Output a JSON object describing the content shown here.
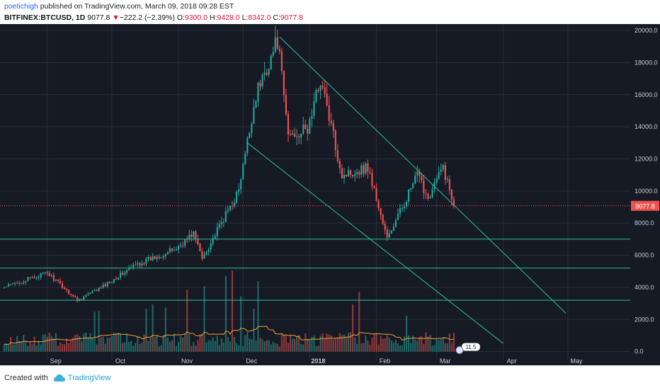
{
  "header": {
    "author": "poetichigh",
    "published_text": " published on TradingView.com, March 09, 2018 09:28 EST",
    "symbol": "BITFINEX:BTCUSD, 1D",
    "last": "9077.8",
    "change_arrow": "▼",
    "change": "−222.2 (−2.39%)",
    "open_label": "O:",
    "open": "9300.0",
    "high_label": "H:",
    "high": "9428.0",
    "low_label": "L:",
    "low": "8342.0",
    "close_label": "C:",
    "close": "9077.8"
  },
  "footer": {
    "created_with": "Created with",
    "brand": "TradingView"
  },
  "colors": {
    "background": "#161a25",
    "grid": "#2a2e39",
    "up": "#26a69a",
    "down": "#ef5350",
    "line": "#2bbf9d",
    "ma": "#f0a030",
    "price_tag": "#ef5350"
  },
  "chart_data": {
    "type": "candlestick",
    "x_axis_labels": [
      "Sep",
      "Oct",
      "Nov",
      "Dec",
      "2018",
      "Feb",
      "Mar",
      "Apr",
      "May"
    ],
    "y_axis_labels": [
      "20000.0",
      "18000.0",
      "16000.0",
      "14000.0",
      "12000.0",
      "10000.0",
      "8000.0",
      "6000.0",
      "4000.0",
      "2000.0",
      "0.0"
    ],
    "y_range": [
      -500,
      20400
    ],
    "last_price_label": "9077.8",
    "last_price": 9077.8,
    "badge_text": "11.5",
    "support_levels": [
      7000,
      5200,
      3200
    ],
    "channel_upper": [
      {
        "date": "2017-12-18",
        "price": 19600
      },
      {
        "date": "2018-04-30",
        "price": 2400
      }
    ],
    "channel_lower": [
      {
        "date": "2017-12-03",
        "price": 13000
      },
      {
        "date": "2018-04-01",
        "price": 500
      }
    ],
    "price_path": [
      {
        "date": "2017-08-12",
        "price": 4000
      },
      {
        "date": "2017-09-01",
        "price": 4900
      },
      {
        "date": "2017-09-15",
        "price": 3200
      },
      {
        "date": "2017-09-25",
        "price": 3900
      },
      {
        "date": "2017-10-12",
        "price": 5400
      },
      {
        "date": "2017-10-31",
        "price": 6400
      },
      {
        "date": "2017-11-08",
        "price": 7400
      },
      {
        "date": "2017-11-12",
        "price": 5800
      },
      {
        "date": "2017-11-29",
        "price": 10000
      },
      {
        "date": "2017-12-07",
        "price": 16000
      },
      {
        "date": "2017-12-17",
        "price": 19400
      },
      {
        "date": "2017-12-22",
        "price": 13500
      },
      {
        "date": "2017-12-31",
        "price": 13800
      },
      {
        "date": "2018-01-06",
        "price": 17000
      },
      {
        "date": "2018-01-16",
        "price": 11000
      },
      {
        "date": "2018-01-28",
        "price": 11500
      },
      {
        "date": "2018-02-06",
        "price": 7000
      },
      {
        "date": "2018-02-20",
        "price": 11000
      },
      {
        "date": "2018-02-25",
        "price": 9600
      },
      {
        "date": "2018-03-04",
        "price": 11500
      },
      {
        "date": "2018-03-09",
        "price": 9077.8
      }
    ]
  }
}
